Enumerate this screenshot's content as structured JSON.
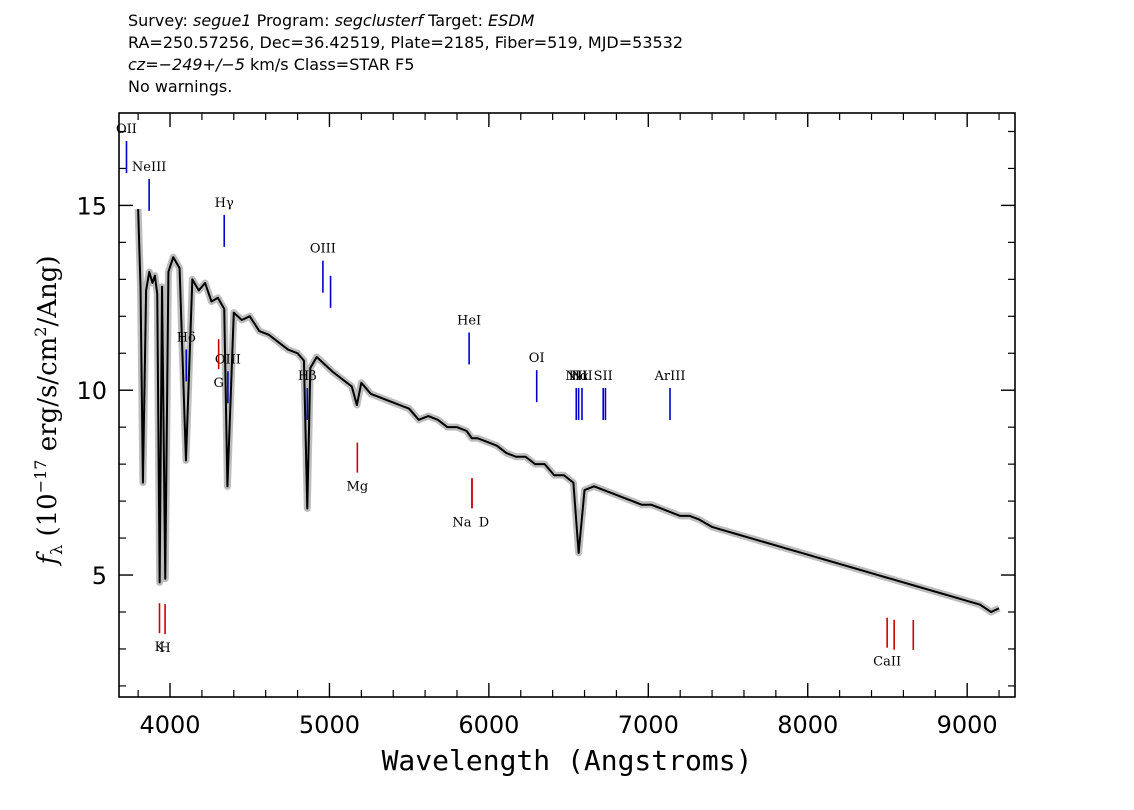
{
  "header": {
    "survey_label": "Survey:",
    "survey": "segue1",
    "program_label": "Program:",
    "program": "segclusterf",
    "target_label": "Target:",
    "target": "ESDM",
    "line2": "RA=250.57256, Dec=36.42519, Plate=2185, Fiber=519, MJD=53532",
    "cz_label": "cz=",
    "cz_value": "−249+/−5",
    "cz_rest": " km/s Class=STAR F5",
    "warnings": "No warnings."
  },
  "chart_data": {
    "type": "line",
    "xlabel": "Wavelength (Angstroms)",
    "ylabel_main": "f",
    "ylabel_sub": "λ",
    "ylabel_rest": " (10",
    "ylabel_exp": "−17",
    "ylabel_units": " erg/s/cm",
    "ylabel_exp2": "2",
    "ylabel_tail": "/Ang)",
    "xlim": [
      3680,
      9300
    ],
    "ylim": [
      1.7,
      17.5
    ],
    "xticks": [
      4000,
      5000,
      6000,
      7000,
      8000,
      9000
    ],
    "yticks": [
      5,
      10,
      15
    ],
    "grid": false,
    "series": [
      {
        "color": "#000000",
        "x": [
          3800,
          3815,
          3830,
          3850,
          3870,
          3890,
          3905,
          3920,
          3935,
          3950,
          3970,
          3990,
          4020,
          4060,
          4100,
          4140,
          4180,
          4220,
          4260,
          4300,
          4340,
          4360,
          4400,
          4450,
          4500,
          4560,
          4620,
          4680,
          4740,
          4800,
          4840,
          4861,
          4880,
          4920,
          4970,
          5020,
          5080,
          5140,
          5172,
          5200,
          5260,
          5320,
          5380,
          5440,
          5500,
          5560,
          5620,
          5680,
          5740,
          5800,
          5860,
          5893,
          5930,
          5990,
          6050,
          6110,
          6170,
          6230,
          6290,
          6350,
          6410,
          6470,
          6530,
          6563,
          6600,
          6660,
          6720,
          6780,
          6840,
          6900,
          6960,
          7020,
          7080,
          7140,
          7200,
          7260,
          7320,
          7400,
          7480,
          7560,
          7640,
          7720,
          7800,
          7880,
          7960,
          8040,
          8120,
          8200,
          8280,
          8360,
          8440,
          8520,
          8600,
          8680,
          8760,
          8840,
          8920,
          9000,
          9080,
          9150,
          9200
        ],
        "y": [
          14.9,
          12.8,
          7.5,
          12.7,
          13.2,
          12.9,
          13.1,
          12.6,
          4.8,
          12.8,
          4.9,
          13.2,
          13.6,
          13.3,
          8.1,
          13.0,
          12.7,
          12.9,
          12.4,
          12.5,
          12.2,
          7.4,
          12.1,
          11.9,
          12.0,
          11.6,
          11.5,
          11.3,
          11.1,
          11.0,
          10.8,
          6.8,
          10.6,
          10.9,
          10.7,
          10.5,
          10.3,
          10.1,
          9.6,
          10.2,
          9.9,
          9.8,
          9.7,
          9.6,
          9.5,
          9.2,
          9.3,
          9.2,
          9.0,
          9.0,
          8.9,
          8.7,
          8.7,
          8.6,
          8.5,
          8.3,
          8.2,
          8.2,
          8.0,
          8.0,
          7.7,
          7.7,
          7.5,
          5.6,
          7.3,
          7.4,
          7.3,
          7.2,
          7.1,
          7.0,
          6.9,
          6.9,
          6.8,
          6.7,
          6.6,
          6.6,
          6.5,
          6.3,
          6.2,
          6.1,
          6.0,
          5.9,
          5.8,
          5.7,
          5.6,
          5.5,
          5.4,
          5.3,
          5.2,
          5.1,
          5.0,
          4.9,
          4.8,
          4.7,
          4.6,
          4.5,
          4.4,
          4.3,
          4.2,
          4.0,
          4.1
        ]
      }
    ],
    "emission_lines": [
      {
        "label": "OII",
        "x": 3727,
        "color": "#0000cc"
      },
      {
        "label": "NeIII",
        "x": 3869,
        "color": "#0000cc"
      },
      {
        "label": "Hδ",
        "x": 4102,
        "color": "#0000cc"
      },
      {
        "label": "Hγ",
        "x": 4340,
        "color": "#0000cc"
      },
      {
        "label": "OIII",
        "x": 4363,
        "color": "#0000cc"
      },
      {
        "label": "Hβ",
        "x": 4861,
        "color": "#0000cc"
      },
      {
        "label": "OIII",
        "x": 4959,
        "color": "#0000cc"
      },
      {
        "label": "",
        "x": 5007,
        "color": "#0000cc"
      },
      {
        "label": "HeI",
        "x": 5876,
        "color": "#0000cc"
      },
      {
        "label": "OI",
        "x": 6300,
        "color": "#0000cc"
      },
      {
        "label": "NII",
        "x": 6548,
        "color": "#0000cc"
      },
      {
        "label": "Hα",
        "x": 6563,
        "color": "#0000cc"
      },
      {
        "label": "NII",
        "x": 6584,
        "color": "#0000cc"
      },
      {
        "label": "SII",
        "x": 6717,
        "color": "#0000cc"
      },
      {
        "label": "",
        "x": 6731,
        "color": "#0000cc"
      },
      {
        "label": "ArIII",
        "x": 7136,
        "color": "#0000cc"
      }
    ],
    "absorption_lines": [
      {
        "label": "K",
        "x": 3934,
        "color": "#cc0000"
      },
      {
        "label": "H",
        "x": 3969,
        "color": "#cc0000"
      },
      {
        "label": "G",
        "x": 4305,
        "color": "#cc0000"
      },
      {
        "label": "Mg",
        "x": 5175,
        "color": "#cc0000"
      },
      {
        "label": "Na",
        "x": 5894,
        "color": "#cc0000"
      },
      {
        "label": "D",
        "x": 5894,
        "color": "#cc0000"
      },
      {
        "label": "CaII",
        "x": 8498,
        "color": "#cc0000"
      },
      {
        "label": "",
        "x": 8542,
        "color": "#cc0000"
      },
      {
        "label": "",
        "x": 8662,
        "color": "#cc0000"
      }
    ]
  }
}
